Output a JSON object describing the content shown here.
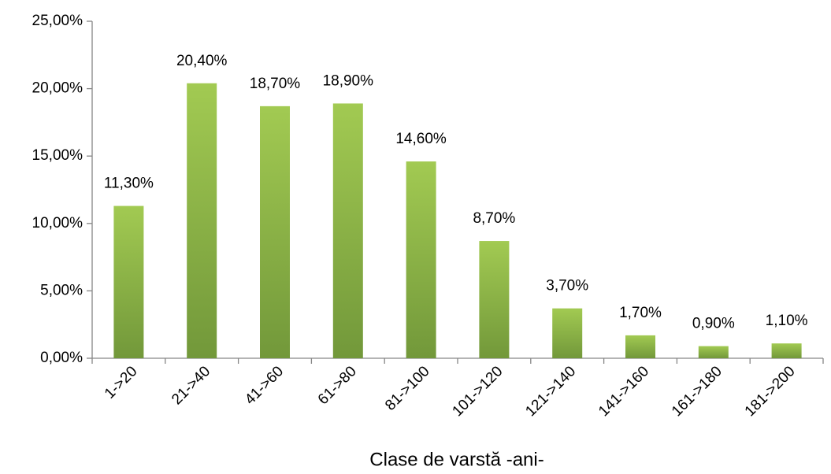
{
  "chart_data": {
    "type": "bar",
    "x_label": "Clase de varstă  -ani-",
    "categories": [
      "1->20",
      "21->40",
      "41->60",
      "61->80",
      "81->100",
      "101->120",
      "121->140",
      "141->160",
      "161->180",
      "181->200"
    ],
    "values": [
      11.3,
      20.4,
      18.7,
      18.9,
      14.6,
      8.7,
      3.7,
      1.7,
      0.9,
      1.1
    ],
    "value_labels": [
      "11,30%",
      "20,40%",
      "18,70%",
      "18,90%",
      "14,60%",
      "8,70%",
      "3,70%",
      "1,70%",
      "0,90%",
      "1,10%"
    ],
    "gradient": [
      "#a2ca52",
      "#72983a"
    ],
    "ylim": [
      0,
      25
    ],
    "yticks": [
      {
        "value": 0,
        "label": "0,00%"
      },
      {
        "value": 5,
        "label": "5,00%"
      },
      {
        "value": 10,
        "label": "10,00%"
      },
      {
        "value": 15,
        "label": "15,00%"
      },
      {
        "value": 20,
        "label": "20,00%"
      },
      {
        "value": 25,
        "label": "25,00%"
      }
    ],
    "grid": false
  }
}
